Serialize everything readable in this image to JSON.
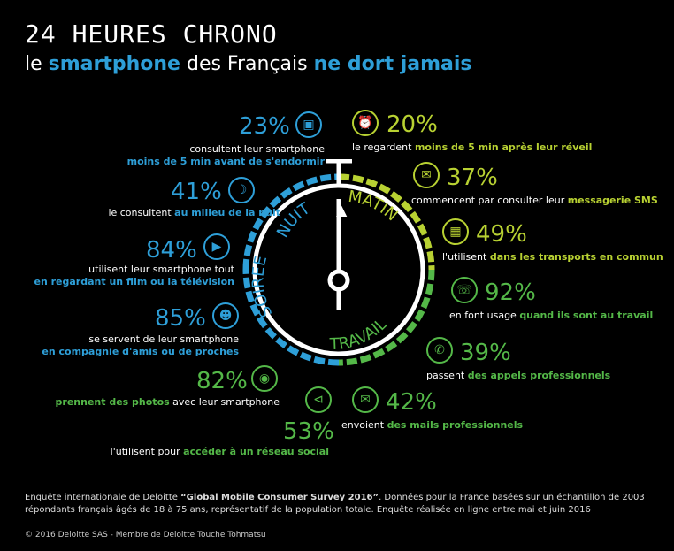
{
  "header": {
    "title": "24 HEURES CHRONO",
    "subtitle_part1": "le ",
    "subtitle_part2": "smartphone",
    "subtitle_part3": " des Français ",
    "subtitle_part4": "ne dort jamais"
  },
  "dial": {
    "segments": [
      "NUIT",
      "MATIN",
      "TRAVAIL",
      "SOIREE"
    ]
  },
  "stats_left": [
    {
      "pct": "23%",
      "text1": "consultent leur smartphone",
      "text2": "moins de 5 min avant de s'endormir",
      "icon": "bed-icon"
    },
    {
      "pct": "41%",
      "text1": "le consultent ",
      "text2": "au milieu de la nuit",
      "icon": "moon-icon"
    },
    {
      "pct": "84%",
      "text1": "utilisent leur smartphone tout",
      "text2": "en regardant un film ou la télévision",
      "icon": "film-icon"
    },
    {
      "pct": "85%",
      "text1": "se servent de leur smartphone",
      "text2": "en compagnie d'amis ou de proches",
      "icon": "people-icon"
    },
    {
      "pct": "82%",
      "text1": " avec leur smartphone",
      "text2": "prennent des photos",
      "icon": "camera-icon"
    },
    {
      "pct": "53%",
      "text1": "l'utilisent pour ",
      "text2": "accéder à un réseau social",
      "icon": "share-icon"
    }
  ],
  "stats_right": [
    {
      "pct": "20%",
      "text1": "le regardent ",
      "text2": "moins de 5 min après leur réveil",
      "icon": "alarm-clock-icon"
    },
    {
      "pct": "37%",
      "text1": "commencent par consulter leur ",
      "text2": "messagerie SMS",
      "icon": "message-icon"
    },
    {
      "pct": "49%",
      "text1": "l'utilisent ",
      "text2": "dans les transports en commun",
      "icon": "train-icon"
    },
    {
      "pct": "92%",
      "text1": "en font usage ",
      "text2": "quand ils sont au travail",
      "icon": "phone-icon"
    },
    {
      "pct": "39%",
      "text1": "passent ",
      "text2": "des appels professionnels",
      "icon": "phone-call-icon"
    },
    {
      "pct": "42%",
      "text1": "envoient ",
      "text2": "des mails professionnels",
      "icon": "mail-icon"
    }
  ],
  "footer": {
    "note_part1": "Enquête internationale de Deloitte ",
    "note_part2": "“Global Mobile Consumer Survey 2016”",
    "note_part3": ". Données pour la France basées sur un échantillon de 2003 répondants français âgés de 18 à 75 ans, représentatif de la population totale. Enquête réalisée en ligne entre mai et juin 2016",
    "copyright": "© 2016 Deloitte SAS - Membre de Deloitte Touche Tohmatsu"
  },
  "colors": {
    "blue": "#2e9fd8",
    "lime": "#b8d132",
    "green": "#54b848",
    "background": "#000000"
  }
}
